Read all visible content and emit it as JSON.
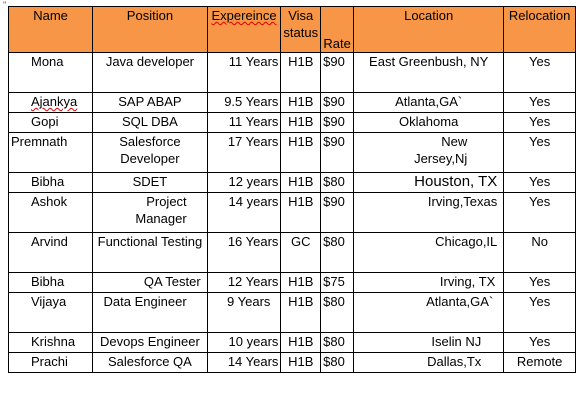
{
  "corner_mark": "\"",
  "table": {
    "headers": {
      "name": "Name",
      "position": "Position",
      "experience": "Expereince",
      "visa": "Visa status",
      "rate": "Rate",
      "location": "Location",
      "relocation": "Relocation"
    },
    "rows": [
      {
        "name": "Mona",
        "position": "Java developer",
        "experience": "11 Years",
        "visa": "H1B",
        "rate": "$90",
        "location": "East Greenbush, NY",
        "relocation": "Yes"
      },
      {
        "name": "Ajankya",
        "position": "SAP ABAP",
        "experience": "9.5 Years",
        "visa": "H1B",
        "rate": "$90",
        "location": "Atlanta,GA`",
        "relocation": "Yes"
      },
      {
        "name": "Gopi",
        "position": "SQL DBA",
        "experience": "11 Years",
        "visa": "H1B",
        "rate": "$90",
        "location": "Oklahoma",
        "relocation": "Yes"
      },
      {
        "name": "Premnath",
        "position": "Salesforce Developer",
        "experience": "17 Years",
        "visa": "H1B",
        "rate": "$90",
        "location": "New Jersey,Nj",
        "relocation": "Yes"
      },
      {
        "name": "Bibha",
        "position": "SDET",
        "experience": "12 years",
        "visa": "H1B",
        "rate": "$80",
        "location": "Houston, TX",
        "relocation": "Yes"
      },
      {
        "name": "Ashok",
        "position": "Project Manager",
        "experience": "14 years",
        "visa": "H1B",
        "rate": "$90",
        "location": "Irving,Texas",
        "relocation": "Yes"
      },
      {
        "name": "Arvind",
        "position": "Functional Testing",
        "experience": "16 Years",
        "visa": "GC",
        "rate": "$80",
        "location": "Chicago,IL",
        "relocation": "No"
      },
      {
        "name": "Bibha",
        "position": "QA Tester",
        "experience": "12 Years",
        "visa": "H1B",
        "rate": "$75",
        "location": "Irving, TX",
        "relocation": "Yes"
      },
      {
        "name": "Vijaya",
        "position": "Data Engineer",
        "experience": "9 Years",
        "visa": "H1B",
        "rate": "$80",
        "location": "Atlanta,GA`",
        "relocation": "Yes"
      },
      {
        "name": "Krishna",
        "position": "Devops Engineer",
        "experience": "10 years",
        "visa": "H1B",
        "rate": "$80",
        "location": "Iselin NJ",
        "relocation": "Yes"
      },
      {
        "name": "Prachi",
        "position": "Salesforce QA",
        "experience": "14 Years",
        "visa": "H1B",
        "rate": "$80",
        "location": "Dallas,Tx",
        "relocation": "Remote"
      }
    ]
  },
  "colors": {
    "header_bg": "#f79646",
    "border": "#000000"
  }
}
